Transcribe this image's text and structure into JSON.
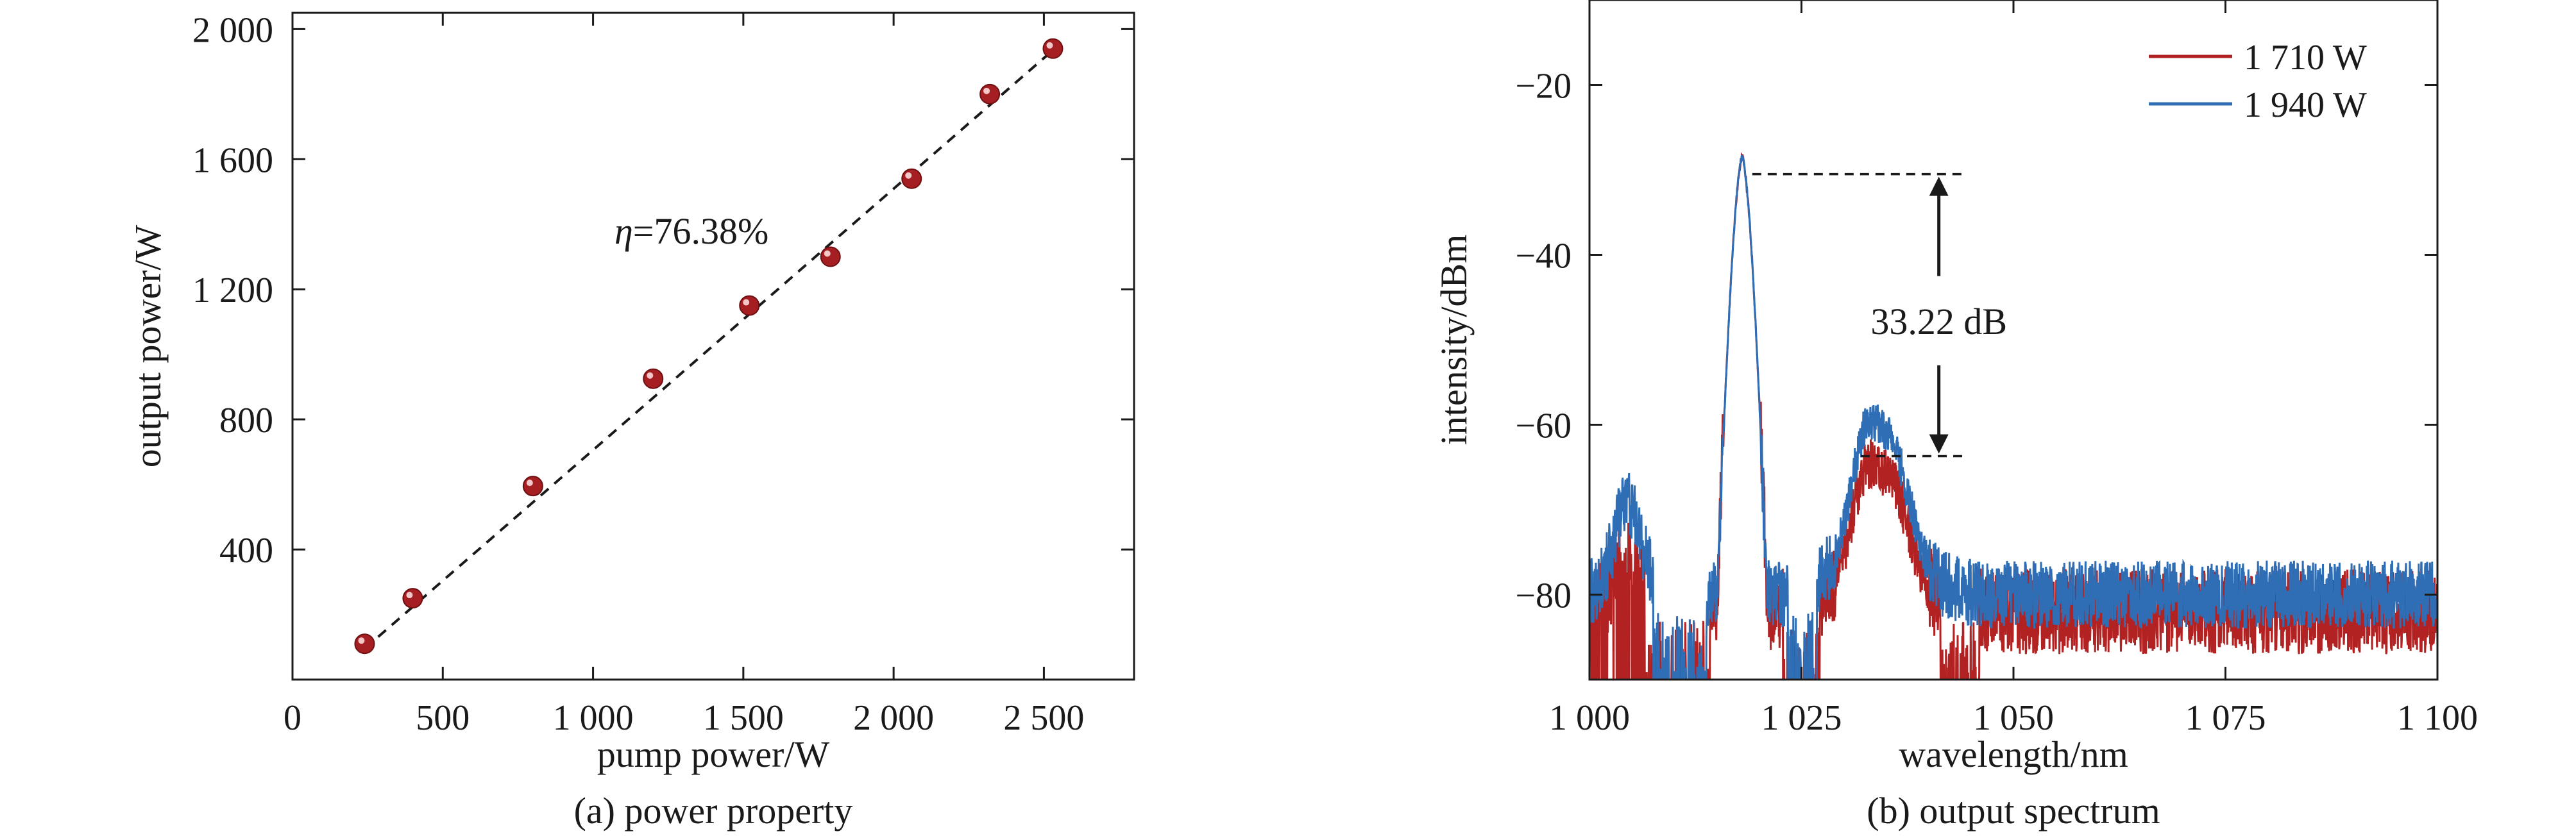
{
  "chart_data": [
    {
      "type": "scatter",
      "caption": "(a) power property",
      "xlabel": "pump power/W",
      "ylabel": "output power/W",
      "xlim": [
        0,
        2800
      ],
      "ylim": [
        0,
        2050
      ],
      "x_ticks": [
        0,
        500,
        1000,
        1500,
        2000,
        2500
      ],
      "x_tick_labels": [
        "0",
        "500",
        "1 000",
        "1 500",
        "2 000",
        "2 500"
      ],
      "y_ticks": [
        400,
        800,
        1200,
        1600,
        2000
      ],
      "y_tick_labels": [
        "400",
        "800",
        "1 200",
        "1 600",
        "2 000"
      ],
      "points": [
        {
          "x": 240,
          "y": 110
        },
        {
          "x": 400,
          "y": 250
        },
        {
          "x": 800,
          "y": 595
        },
        {
          "x": 1200,
          "y": 925
        },
        {
          "x": 1520,
          "y": 1150
        },
        {
          "x": 1790,
          "y": 1300
        },
        {
          "x": 2060,
          "y": 1540
        },
        {
          "x": 2320,
          "y": 1800
        },
        {
          "x": 2530,
          "y": 1940
        }
      ],
      "fit_line": {
        "x1": 240,
        "y1": 95,
        "x2": 2530,
        "y2": 1935,
        "style": "dashed"
      },
      "annotation": {
        "symbol": "η",
        "text": "=76.38%"
      },
      "marker_color": "#a51e22",
      "grid": false
    },
    {
      "type": "line",
      "caption": "(b) output spectrum",
      "xlabel": "wavelength/nm",
      "ylabel": "intensity/dBm",
      "xlim": [
        1000,
        1100
      ],
      "ylim": [
        -90,
        -10
      ],
      "x_ticks": [
        1000,
        1025,
        1050,
        1075,
        1100
      ],
      "x_tick_labels": [
        "1 000",
        "1 025",
        "1 050",
        "1 075",
        "1 100"
      ],
      "y_ticks": [
        -80,
        -60,
        -40,
        -20
      ],
      "y_tick_labels": [
        "−80",
        "−60",
        "−40",
        "−20"
      ],
      "series": [
        {
          "name": "1 710 W",
          "color": "#b22222",
          "peak_wavelength": 1018,
          "peak_intensity": -30.5,
          "noise_floor": -82,
          "secondary_peak": -68
        },
        {
          "name": "1 940 W",
          "color": "#2f6eb5",
          "peak_wavelength": 1018,
          "peak_intensity": -30.5,
          "noise_floor": -80,
          "secondary_peak": -63.5
        }
      ],
      "annotation": {
        "text": "33.22 dB",
        "upper_level": -30.5,
        "lower_level": -63.7
      },
      "legend_position": "top-right",
      "grid": false
    }
  ]
}
